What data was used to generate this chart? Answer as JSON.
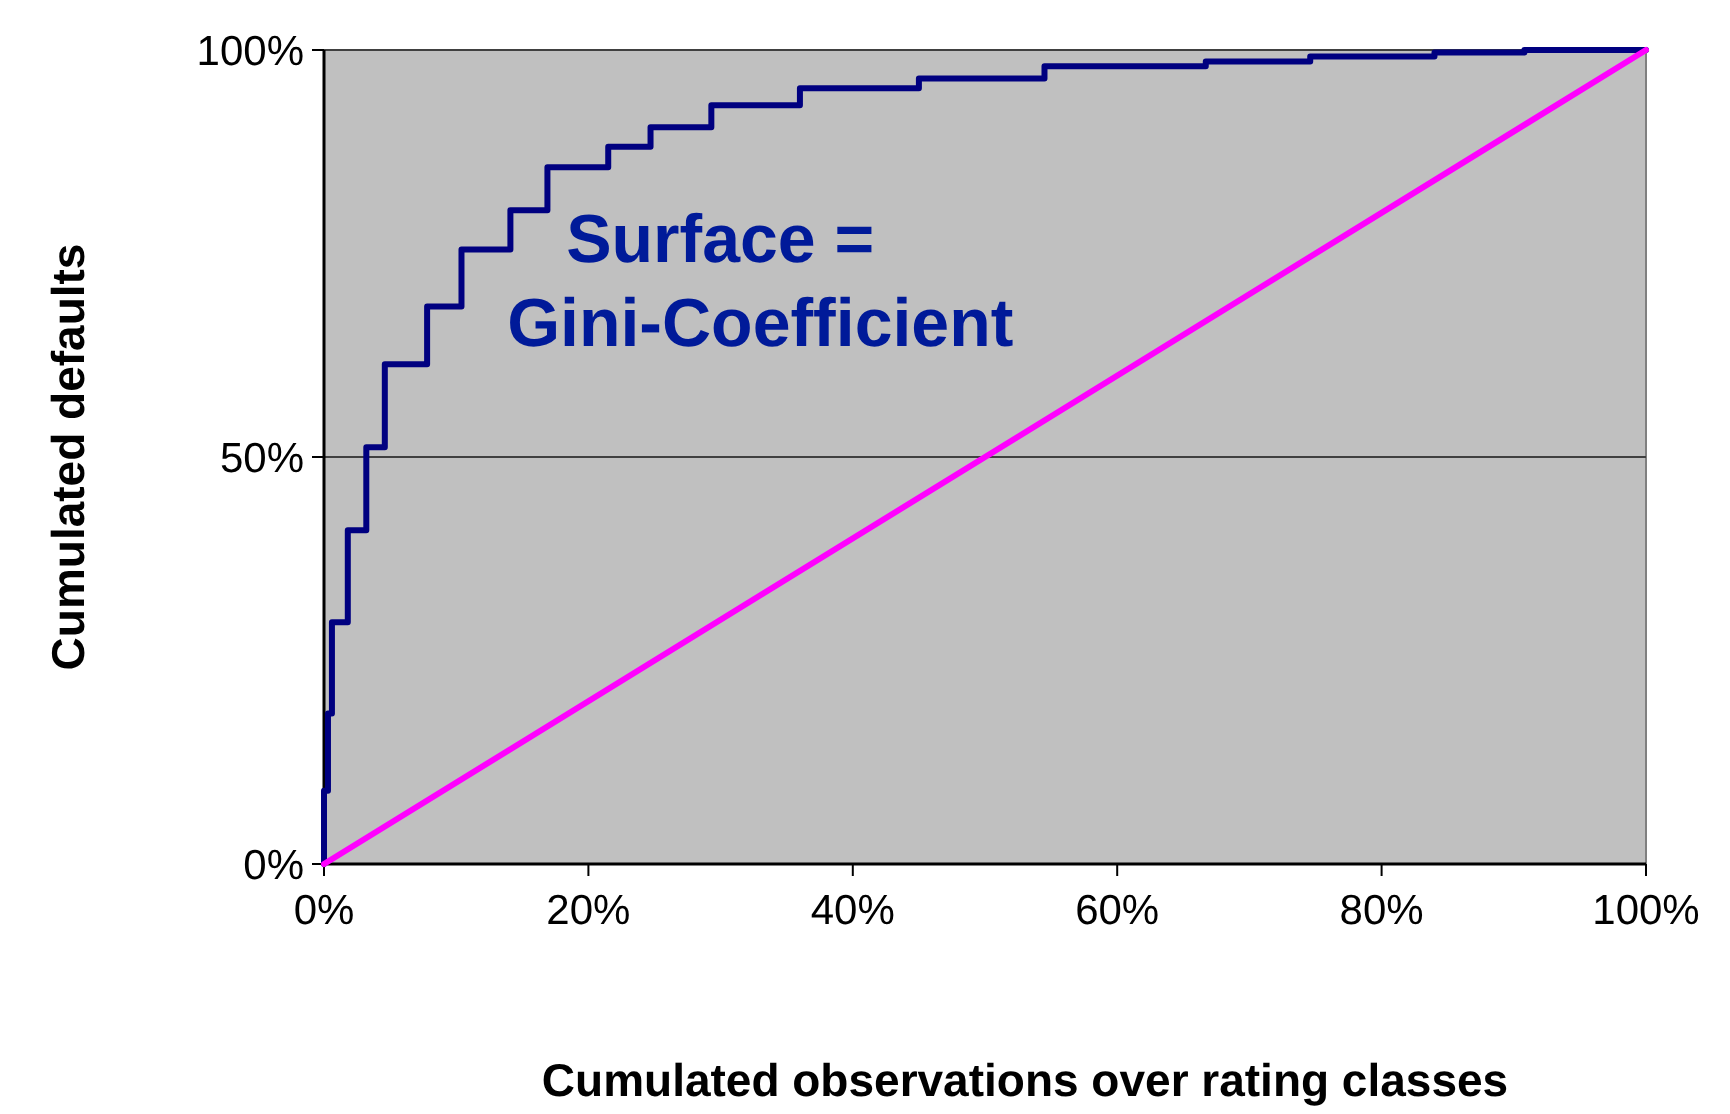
{
  "chart_data": {
    "type": "line",
    "xlabel": "Cumulated observations over rating classes",
    "ylabel": "Cumulated defaults",
    "xlim": [
      0,
      100
    ],
    "ylim": [
      0,
      100
    ],
    "xticks": [
      {
        "value": 0,
        "label": "0%"
      },
      {
        "value": 20,
        "label": "20%"
      },
      {
        "value": 40,
        "label": "40%"
      },
      {
        "value": 60,
        "label": "60%"
      },
      {
        "value": 80,
        "label": "80%"
      },
      {
        "value": 100,
        "label": "100%"
      }
    ],
    "yticks": [
      {
        "value": 0,
        "label": "0%"
      },
      {
        "value": 50,
        "label": "50%"
      },
      {
        "value": 100,
        "label": "100%"
      }
    ],
    "grid": "y",
    "marker": "none",
    "line_style": "solid",
    "annotations": [
      "Surface =\nGini-Coefficient"
    ],
    "series": [
      {
        "type": "step",
        "color": "#000080",
        "x": [
          0,
          0,
          0.3,
          0.6,
          1.8,
          3.2,
          4.6,
          7.8,
          10.4,
          14.1,
          16.9,
          21.5,
          24.7,
          29.3,
          36,
          45,
          54.5,
          66.7,
          74.6,
          84,
          90.8,
          100
        ],
        "values": [
          0,
          9,
          18.5,
          29.7,
          41,
          51.2,
          61.4,
          68.5,
          75.5,
          80.3,
          85.6,
          88.1,
          90.5,
          93.2,
          95.3,
          96.5,
          98,
          98.6,
          99.2,
          99.7,
          100,
          100
        ]
      },
      {
        "color": "#ff00ff",
        "x": [
          0,
          100
        ],
        "values": [
          0,
          100
        ]
      }
    ]
  }
}
